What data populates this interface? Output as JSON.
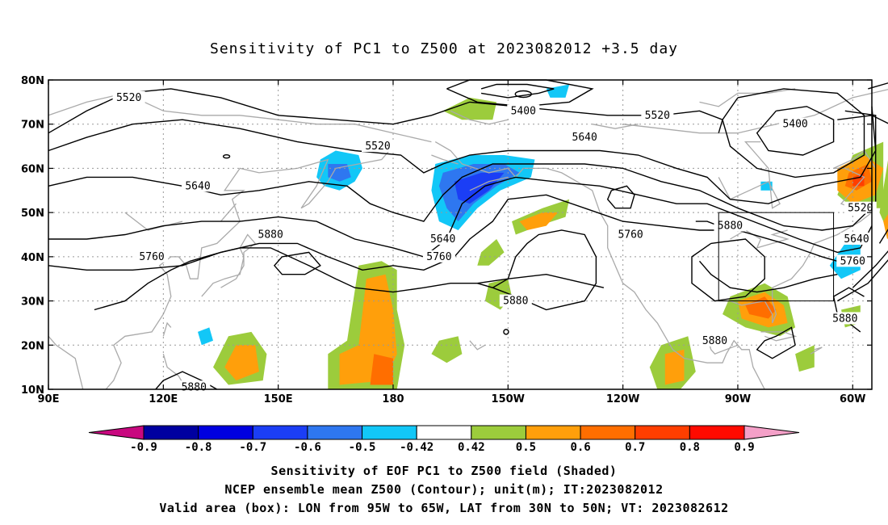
{
  "title": "Sensitivity of PC1 to Z500 at 2023082012 +3.5 day",
  "map": {
    "lon_range": [
      90,
      305
    ],
    "lat_range": [
      10,
      80
    ],
    "x_ticks": [
      {
        "lon": 90,
        "label": "90E"
      },
      {
        "lon": 120,
        "label": "120E"
      },
      {
        "lon": 150,
        "label": "150E"
      },
      {
        "lon": 180,
        "label": "180"
      },
      {
        "lon": 210,
        "label": "150W"
      },
      {
        "lon": 240,
        "label": "120W"
      },
      {
        "lon": 270,
        "label": "90W"
      },
      {
        "lon": 300,
        "label": "60W"
      }
    ],
    "y_ticks": [
      {
        "lat": 10,
        "label": "10N"
      },
      {
        "lat": 20,
        "label": "20N"
      },
      {
        "lat": 30,
        "label": "30N"
      },
      {
        "lat": 40,
        "label": "40N"
      },
      {
        "lat": 50,
        "label": "50N"
      },
      {
        "lat": 60,
        "label": "60N"
      },
      {
        "lat": 70,
        "label": "70N"
      },
      {
        "lat": 80,
        "label": "80N"
      }
    ],
    "grid": true,
    "valid_box": {
      "lon_min": 265,
      "lon_max": 295,
      "lat_min": 30,
      "lat_max": 50
    },
    "contour_labels": [
      {
        "text": "5520",
        "lon": 111,
        "lat": 76
      },
      {
        "text": "5520",
        "lon": 176,
        "lat": 65
      },
      {
        "text": "5400",
        "lon": 214,
        "lat": 73
      },
      {
        "text": "5520",
        "lon": 249,
        "lat": 72
      },
      {
        "text": "5400",
        "lon": 285,
        "lat": 70
      },
      {
        "text": "5640",
        "lon": 230,
        "lat": 67
      },
      {
        "text": "5640",
        "lon": 129,
        "lat": 56
      },
      {
        "text": "5880",
        "lon": 148,
        "lat": 45
      },
      {
        "text": "5760",
        "lon": 117,
        "lat": 40
      },
      {
        "text": "5640",
        "lon": 193,
        "lat": 44
      },
      {
        "text": "5760",
        "lon": 192,
        "lat": 40
      },
      {
        "text": "5760",
        "lon": 242,
        "lat": 45
      },
      {
        "text": "5880",
        "lon": 268,
        "lat": 47
      },
      {
        "text": "5520",
        "lon": 302,
        "lat": 51
      },
      {
        "text": "5640",
        "lon": 301,
        "lat": 44
      },
      {
        "text": "5760",
        "lon": 300,
        "lat": 39
      },
      {
        "text": "5880",
        "lon": 212,
        "lat": 30
      },
      {
        "text": "5880",
        "lon": 298,
        "lat": 26
      },
      {
        "text": "5880",
        "lon": 264,
        "lat": 21
      },
      {
        "text": "5880",
        "lon": 128,
        "lat": 10.5
      }
    ]
  },
  "colorbar": {
    "labels": [
      "-0.9",
      "-0.8",
      "-0.7",
      "-0.6",
      "-0.5",
      "-0.42",
      "0.42",
      "0.5",
      "0.6",
      "0.7",
      "0.8",
      "0.9"
    ],
    "colors": {
      "below": "#c8087f",
      "above": "#f4a0c8",
      "boxes": [
        "#0000a0",
        "#0000e0",
        "#1b3ef5",
        "#2e77f0",
        "#12c7f7",
        "#ffffff",
        "#9ccc3c",
        "#ff9f0b",
        "#ff6e00",
        "#ff3e00",
        "#ff0a00"
      ]
    }
  },
  "shading_colors": {
    "neg_light": "#12c7f7",
    "neg_mid": "#2e77f0",
    "neg_dark": "#1b3ef5",
    "pos_light": "#9ccc3c",
    "pos_mid": "#ff9f0b",
    "pos_high": "#ff6e00",
    "pos_top": "#ff3e00"
  },
  "captions": [
    "Sensitivity of EOF PC1 to Z500 field (Shaded)",
    "NCEP ensemble mean Z500 (Contour); unit(m); IT:2023082012",
    "Valid area (box): LON from 95W to 65W, LAT from 30N to 50N; VT: 2023082612"
  ]
}
